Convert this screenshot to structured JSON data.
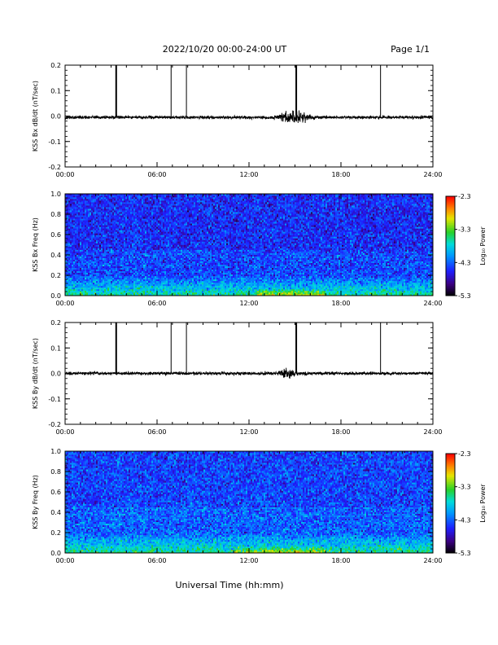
{
  "header": {
    "title": "2022/10/20  00:00-24:00 UT",
    "page": "Page 1/1"
  },
  "footer": {
    "xlabel": "Universal Time (hh:mm)"
  },
  "colors": {
    "trace": "#000000",
    "colormap": [
      "#000000",
      "#3a007a",
      "#1a1aff",
      "#00a0ff",
      "#00e0e0",
      "#20d020",
      "#e0e000",
      "#ff8000",
      "#ff0000"
    ]
  },
  "chart_data": [
    {
      "type": "line",
      "panel": "time-series",
      "component": "Bx",
      "ylabel": "KSS Bx dB/dt (nT/sec)",
      "xlim": [
        "00:00",
        "24:00"
      ],
      "ylim": [
        -0.2,
        0.2
      ],
      "xticks": [
        "00:00",
        "06:00",
        "12:00",
        "18:00",
        "24:00"
      ],
      "yticks": [
        "-0.2",
        "-0.1",
        "0.0",
        "0.1",
        "0.2"
      ],
      "baseline": -0.005,
      "noise_amplitude": 0.004,
      "disturbance_window": [
        "13:30",
        "16:30"
      ],
      "disturbance_amplitude": 0.015,
      "spikes": [
        {
          "time": "03:20",
          "value": 0.21
        },
        {
          "time": "06:55",
          "value": 0.21
        },
        {
          "time": "07:55",
          "value": 0.21
        },
        {
          "time": "15:05",
          "value": 0.21
        },
        {
          "time": "20:35",
          "value": 0.21
        }
      ]
    },
    {
      "type": "heatmap",
      "panel": "spectrogram",
      "component": "Bx",
      "ylabel": "KSS Bx Freq (Hz)",
      "xlim": [
        "00:00",
        "24:00"
      ],
      "ylim": [
        0.0,
        1.0
      ],
      "xticks": [
        "00:00",
        "06:00",
        "12:00",
        "18:00",
        "24:00"
      ],
      "yticks": [
        "0.0",
        "0.2",
        "0.4",
        "0.6",
        "0.8",
        "1.0"
      ],
      "colorbar": {
        "label": "Log₁₀ Power",
        "range": [
          -5.3,
          -2.3
        ],
        "ticks": [
          "-2.3",
          "-3.3",
          "-4.3",
          "-5.3"
        ]
      },
      "background_log_power": -4.4,
      "low_freq_log_power": -3.6,
      "enhanced_window": [
        "12:30",
        "17:00"
      ]
    },
    {
      "type": "line",
      "panel": "time-series",
      "component": "By",
      "ylabel": "KSS By dB/dt (nT/sec)",
      "xlim": [
        "00:00",
        "24:00"
      ],
      "ylim": [
        -0.2,
        0.2
      ],
      "xticks": [
        "00:00",
        "06:00",
        "12:00",
        "18:00",
        "24:00"
      ],
      "yticks": [
        "-0.2",
        "-0.1",
        "0.0",
        "0.1",
        "0.2"
      ],
      "baseline": 0.0,
      "noise_amplitude": 0.004,
      "disturbance_window": [
        "13:45",
        "15:15"
      ],
      "disturbance_amplitude": 0.012,
      "spikes": [
        {
          "time": "03:20",
          "value": 0.21
        },
        {
          "time": "06:55",
          "value": 0.21
        },
        {
          "time": "07:55",
          "value": 0.21
        },
        {
          "time": "15:05",
          "value": 0.21
        },
        {
          "time": "20:35",
          "value": 0.21
        }
      ]
    },
    {
      "type": "heatmap",
      "panel": "spectrogram",
      "component": "By",
      "ylabel": "KSS By Freq (Hz)",
      "xlim": [
        "00:00",
        "24:00"
      ],
      "ylim": [
        0.0,
        1.0
      ],
      "xticks": [
        "00:00",
        "06:00",
        "12:00",
        "18:00",
        "24:00"
      ],
      "yticks": [
        "0.0",
        "0.2",
        "0.4",
        "0.6",
        "0.8",
        "1.0"
      ],
      "colorbar": {
        "label": "Log₁₀ Power",
        "range": [
          -5.3,
          -2.3
        ],
        "ticks": [
          "-2.3",
          "-3.3",
          "-4.3",
          "-5.3"
        ]
      },
      "background_log_power": -4.3,
      "low_freq_log_power": -3.6,
      "enhanced_window": [
        "11:00",
        "17:00"
      ]
    }
  ]
}
